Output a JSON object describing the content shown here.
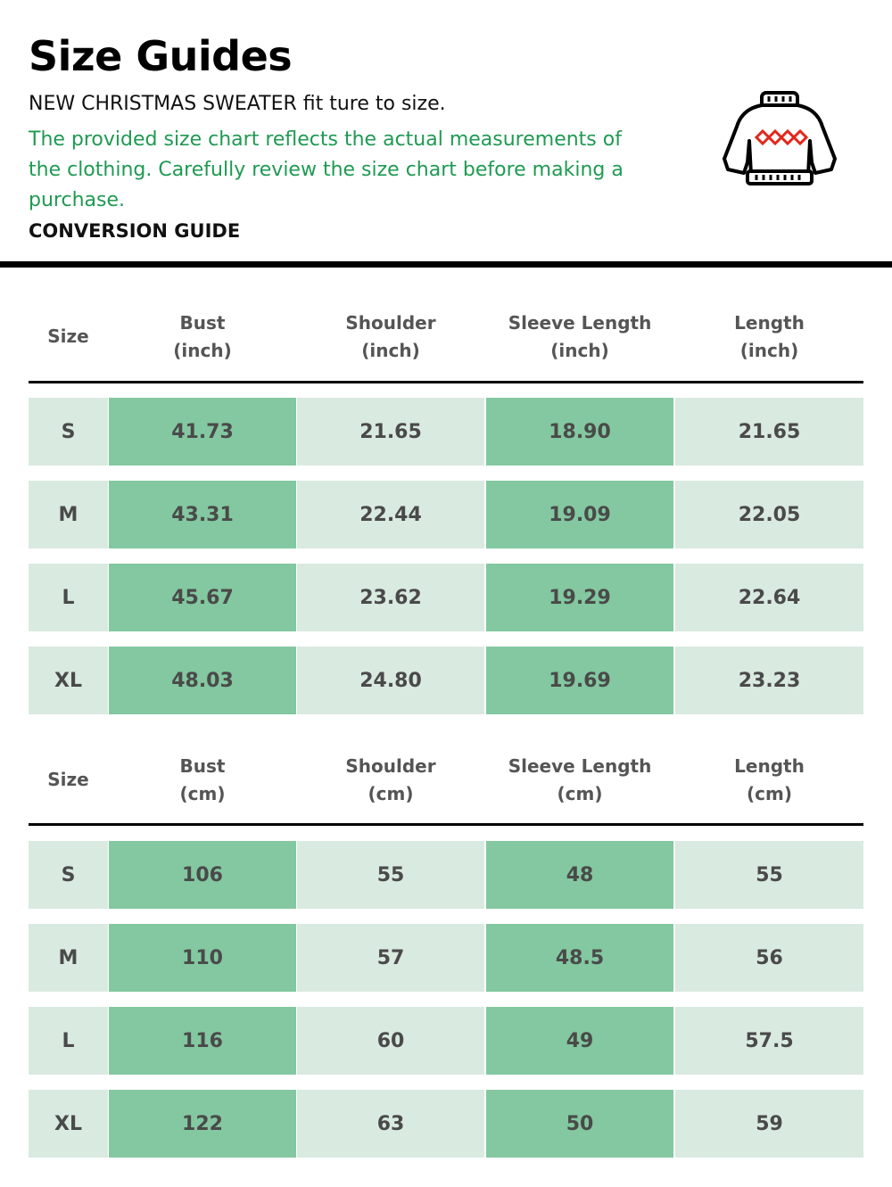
{
  "title": "Size Guides",
  "subtitle": "NEW CHRISTMAS SWEATER fit ture to size.",
  "note": "The provided size chart reflects the actual measurements of the clothing. Carefully review the size chart before making a purchase.",
  "conversion_label": "CONVERSION GUIDE",
  "icon": "sweater-icon",
  "colors": {
    "note": "#1f9a52",
    "cell_light": "#d9eae0",
    "cell_dark": "#83c8a0",
    "text": "#4a4a4a"
  },
  "tables": [
    {
      "headers": [
        "Size",
        "Bust\n(inch)",
        "Shoulder\n(inch)",
        "Sleeve Length\n(inch)",
        "Length\n(inch)"
      ],
      "rows": [
        [
          "S",
          "41.73",
          "21.65",
          "18.90",
          "21.65"
        ],
        [
          "M",
          "43.31",
          "22.44",
          "19.09",
          "22.05"
        ],
        [
          "L",
          "45.67",
          "23.62",
          "19.29",
          "22.64"
        ],
        [
          "XL",
          "48.03",
          "24.80",
          "19.69",
          "23.23"
        ]
      ]
    },
    {
      "headers": [
        "Size",
        "Bust\n(cm)",
        "Shoulder\n(cm)",
        "Sleeve Length\n(cm)",
        "Length\n(cm)"
      ],
      "rows": [
        [
          "S",
          "106",
          "55",
          "48",
          "55"
        ],
        [
          "M",
          "110",
          "57",
          "48.5",
          "56"
        ],
        [
          "L",
          "116",
          "60",
          "49",
          "57.5"
        ],
        [
          "XL",
          "122",
          "63",
          "50",
          "59"
        ]
      ]
    }
  ]
}
